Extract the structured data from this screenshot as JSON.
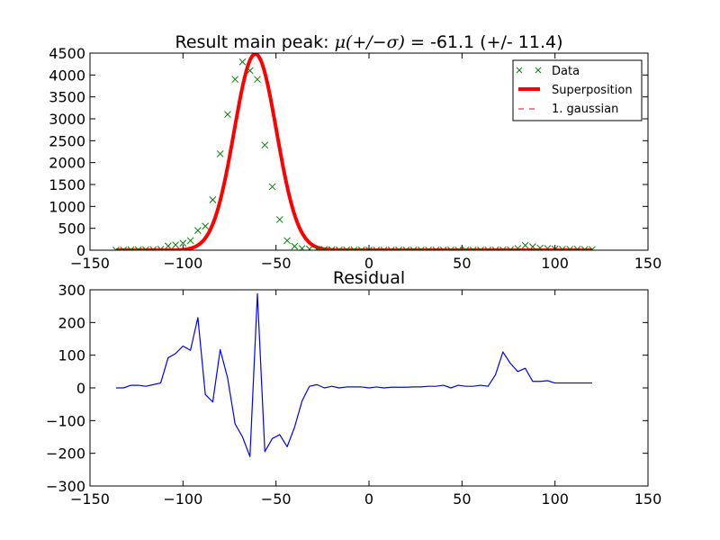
{
  "chart_data": [
    {
      "type": "scatter",
      "title_prefix": "Result main peak: ",
      "title_math": "μ(+/−σ)",
      "title_suffix": " = -61.1 (+/- 11.4)",
      "xlim": [
        -150,
        150
      ],
      "ylim": [
        0,
        4500
      ],
      "xticks": [
        "−150",
        "−100",
        "−50",
        "0",
        "50",
        "100",
        "150"
      ],
      "xtick_values": [
        -150,
        -100,
        -50,
        0,
        50,
        100,
        150
      ],
      "yticks": [
        "0",
        "500",
        "1000",
        "1500",
        "2000",
        "2500",
        "3000",
        "3500",
        "4000",
        "4500"
      ],
      "ytick_values": [
        0,
        500,
        1000,
        1500,
        2000,
        2500,
        3000,
        3500,
        4000,
        4500
      ],
      "legend": {
        "position": "upper right",
        "entries": [
          {
            "label": "Data",
            "marker": "x",
            "color": "#008000"
          },
          {
            "label": "Superposition",
            "marker": "line-thick",
            "color": "#ff0000"
          },
          {
            "label": "1. gaussian",
            "marker": "dashed",
            "color": "#ff0000"
          }
        ]
      },
      "gaussian": {
        "mu": -61.1,
        "sigma": 11.4,
        "amplitude": 4480
      },
      "series": [
        {
          "name": "Data",
          "color": "#008000",
          "x": [
            -136,
            -132,
            -128,
            -124,
            -120,
            -116,
            -112,
            -108,
            -104,
            -100,
            -96,
            -92,
            -88,
            -84,
            -80,
            -76,
            -72,
            -68,
            -64,
            -60,
            -56,
            -52,
            -48,
            -44,
            -40,
            -36,
            -32,
            -28,
            -24,
            -20,
            -16,
            -12,
            -8,
            -4,
            0,
            4,
            8,
            12,
            16,
            20,
            24,
            28,
            32,
            36,
            40,
            44,
            48,
            52,
            56,
            60,
            64,
            68,
            72,
            76,
            80,
            84,
            88,
            92,
            96,
            100,
            104,
            108,
            112,
            116,
            120
          ],
          "y": [
            2,
            2,
            10,
            10,
            10,
            12,
            20,
            95,
            120,
            160,
            220,
            450,
            550,
            1150,
            2200,
            3100,
            3900,
            4300,
            4100,
            3900,
            2400,
            1450,
            700,
            220,
            90,
            40,
            25,
            20,
            15,
            12,
            8,
            5,
            5,
            3,
            3,
            3,
            3,
            3,
            3,
            3,
            3,
            3,
            3,
            3,
            3,
            3,
            3,
            3,
            3,
            3,
            5,
            5,
            5,
            10,
            40,
            110,
            80,
            50,
            40,
            25,
            20,
            20,
            20,
            15,
            15
          ]
        }
      ]
    },
    {
      "type": "line",
      "title": "Residual",
      "xlim": [
        -150,
        150
      ],
      "ylim": [
        -300,
        300
      ],
      "xticks": [
        "−150",
        "−100",
        "−50",
        "0",
        "50",
        "100",
        "150"
      ],
      "xtick_values": [
        -150,
        -100,
        -50,
        0,
        50,
        100,
        150
      ],
      "yticks": [
        "−300",
        "−200",
        "−100",
        "0",
        "100",
        "200",
        "300"
      ],
      "ytick_values": [
        -300,
        -200,
        -100,
        0,
        100,
        200,
        300
      ],
      "series": [
        {
          "name": "",
          "color": "#0000ff",
          "x": [
            -136,
            -132,
            -128,
            -124,
            -120,
            -116,
            -112,
            -108,
            -104,
            -100,
            -96,
            -92,
            -88,
            -84,
            -80,
            -76,
            -72,
            -68,
            -64,
            -60,
            -56,
            -52,
            -48,
            -44,
            -40,
            -36,
            -32,
            -28,
            -24,
            -20,
            -16,
            -12,
            -8,
            -4,
            0,
            4,
            8,
            12,
            16,
            20,
            24,
            28,
            32,
            36,
            40,
            44,
            48,
            52,
            56,
            60,
            64,
            68,
            72,
            76,
            80,
            84,
            88,
            92,
            96,
            100,
            104,
            108,
            112,
            116,
            120
          ],
          "y": [
            0,
            0,
            8,
            8,
            5,
            10,
            15,
            92,
            105,
            128,
            115,
            215,
            -20,
            -43,
            117,
            30,
            -110,
            -150,
            -210,
            288,
            -195,
            -155,
            -143,
            -180,
            -120,
            -40,
            5,
            10,
            0,
            5,
            0,
            3,
            3,
            3,
            0,
            3,
            0,
            2,
            2,
            2,
            3,
            3,
            5,
            5,
            8,
            0,
            8,
            5,
            5,
            8,
            5,
            40,
            110,
            75,
            50,
            60,
            20,
            20,
            22,
            15,
            15,
            15,
            15,
            15,
            15
          ]
        }
      ]
    }
  ]
}
